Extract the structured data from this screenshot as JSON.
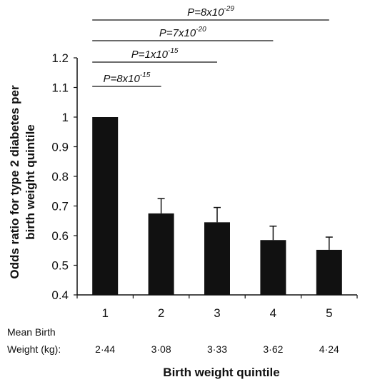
{
  "chart_data": {
    "type": "bar",
    "categories": [
      "1",
      "2",
      "3",
      "4",
      "5"
    ],
    "values": [
      1.0,
      0.675,
      0.645,
      0.585,
      0.552
    ],
    "error_upper": [
      1.0,
      0.725,
      0.695,
      0.632,
      0.595
    ],
    "ylim": [
      0.4,
      1.2
    ],
    "yticks": [
      "0.4",
      "0.5",
      "0.6",
      "0.7",
      "0.8",
      "0.9",
      "1",
      "1.1",
      "1.2"
    ],
    "ylabel_line1": "Odds ratio for type 2 diabetes per",
    "ylabel_line2": "birth weight quintile",
    "xlabel": "Birth weight quintile",
    "mean_weight_label_line1": "Mean Birth",
    "mean_weight_label_line2": "Weight (kg):",
    "mean_weights": [
      "2·44",
      "3·08",
      "3·33",
      "3·62",
      "4·24"
    ],
    "comparisons": [
      {
        "from": "1",
        "to": "2",
        "text": "P=8x10",
        "exponent": "-15"
      },
      {
        "from": "1",
        "to": "3",
        "text": "P=1x10",
        "exponent": "-15"
      },
      {
        "from": "1",
        "to": "4",
        "text": "P=7x10",
        "exponent": "-20"
      },
      {
        "from": "1",
        "to": "5",
        "text": "P=8x10",
        "exponent": "-29"
      }
    ],
    "bar_color": "#111111",
    "grid": false,
    "legend": "none"
  }
}
